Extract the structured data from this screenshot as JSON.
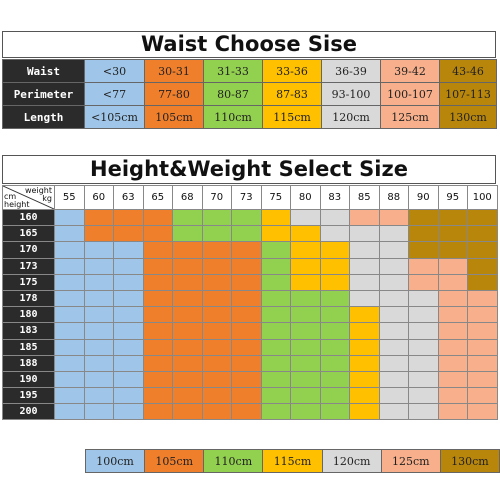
{
  "colors": {
    "blue": "#9fc5e8",
    "orange": "#f07f2c",
    "green": "#92d050",
    "yellow": "#ffc000",
    "gray": "#d9d9d9",
    "peach": "#f8b08c",
    "gold": "#b8860b",
    "header_dark": "#2b2b2b"
  },
  "waist_chart": {
    "title": "Waist Choose Sise",
    "row_labels": [
      "Waist",
      "Perimeter",
      "Length"
    ],
    "columns": [
      {
        "color": "blue",
        "waist": "<30",
        "perimeter": "<77",
        "length": "<105cm"
      },
      {
        "color": "orange",
        "waist": "30-31",
        "perimeter": "77-80",
        "length": "105cm"
      },
      {
        "color": "green",
        "waist": "31-33",
        "perimeter": "80-87",
        "length": "110cm"
      },
      {
        "color": "yellow",
        "waist": "33-36",
        "perimeter": "87-83",
        "length": "115cm"
      },
      {
        "color": "gray",
        "waist": "36-39",
        "perimeter": "93-100",
        "length": "120cm"
      },
      {
        "color": "peach",
        "waist": "39-42",
        "perimeter": "100-107",
        "length": "125cm"
      },
      {
        "color": "gold",
        "waist": "43-46",
        "perimeter": "107-113",
        "length": "130cm"
      }
    ]
  },
  "size_chart": {
    "title": "Height&Weight Select Size",
    "corner": {
      "top_right": "weight",
      "top_unit": "kg",
      "bottom_left_unit": "cm",
      "bottom_left": "height"
    },
    "weights": [
      "55",
      "60",
      "63",
      "65",
      "68",
      "70",
      "73",
      "75",
      "80",
      "83",
      "85",
      "88",
      "90",
      "95",
      "100"
    ],
    "heights": [
      "160",
      "165",
      "170",
      "173",
      "175",
      "178",
      "180",
      "183",
      "185",
      "188",
      "190",
      "195",
      "200"
    ],
    "grid": [
      [
        "blue",
        "orange",
        "orange",
        "orange",
        "green",
        "green",
        "green",
        "yellow",
        "gray",
        "gray",
        "peach",
        "peach",
        "gold",
        "gold",
        "gold"
      ],
      [
        "blue",
        "orange",
        "orange",
        "orange",
        "green",
        "green",
        "green",
        "yellow",
        "yellow",
        "gray",
        "gray",
        "gray",
        "gold",
        "gold",
        "gold"
      ],
      [
        "blue",
        "blue",
        "blue",
        "orange",
        "orange",
        "orange",
        "orange",
        "green",
        "yellow",
        "yellow",
        "gray",
        "gray",
        "gold",
        "gold",
        "gold"
      ],
      [
        "blue",
        "blue",
        "blue",
        "orange",
        "orange",
        "orange",
        "orange",
        "green",
        "yellow",
        "yellow",
        "gray",
        "gray",
        "peach",
        "peach",
        "gold"
      ],
      [
        "blue",
        "blue",
        "blue",
        "orange",
        "orange",
        "orange",
        "orange",
        "green",
        "yellow",
        "yellow",
        "gray",
        "gray",
        "peach",
        "peach",
        "gold"
      ],
      [
        "blue",
        "blue",
        "blue",
        "orange",
        "orange",
        "orange",
        "orange",
        "green",
        "green",
        "green",
        "gray",
        "gray",
        "gray",
        "peach",
        "peach"
      ],
      [
        "blue",
        "blue",
        "blue",
        "orange",
        "orange",
        "orange",
        "orange",
        "green",
        "green",
        "green",
        "yellow",
        "gray",
        "gray",
        "peach",
        "peach"
      ],
      [
        "blue",
        "blue",
        "blue",
        "orange",
        "orange",
        "orange",
        "orange",
        "green",
        "green",
        "green",
        "yellow",
        "gray",
        "gray",
        "peach",
        "peach"
      ],
      [
        "blue",
        "blue",
        "blue",
        "orange",
        "orange",
        "orange",
        "orange",
        "green",
        "green",
        "green",
        "yellow",
        "gray",
        "gray",
        "peach",
        "peach"
      ],
      [
        "blue",
        "blue",
        "blue",
        "orange",
        "orange",
        "orange",
        "orange",
        "green",
        "green",
        "green",
        "yellow",
        "gray",
        "gray",
        "peach",
        "peach"
      ],
      [
        "blue",
        "blue",
        "blue",
        "orange",
        "orange",
        "orange",
        "orange",
        "green",
        "green",
        "green",
        "yellow",
        "gray",
        "gray",
        "peach",
        "peach"
      ],
      [
        "blue",
        "blue",
        "blue",
        "orange",
        "orange",
        "orange",
        "orange",
        "green",
        "green",
        "green",
        "yellow",
        "gray",
        "gray",
        "peach",
        "peach"
      ],
      [
        "blue",
        "blue",
        "blue",
        "orange",
        "orange",
        "orange",
        "orange",
        "green",
        "green",
        "green",
        "yellow",
        "gray",
        "gray",
        "peach",
        "peach"
      ]
    ]
  },
  "legend": [
    {
      "color": "blue",
      "label": "100cm"
    },
    {
      "color": "orange",
      "label": "105cm"
    },
    {
      "color": "green",
      "label": "110cm"
    },
    {
      "color": "yellow",
      "label": "115cm"
    },
    {
      "color": "gray",
      "label": "120cm"
    },
    {
      "color": "peach",
      "label": "125cm"
    },
    {
      "color": "gold",
      "label": "130cm"
    }
  ]
}
